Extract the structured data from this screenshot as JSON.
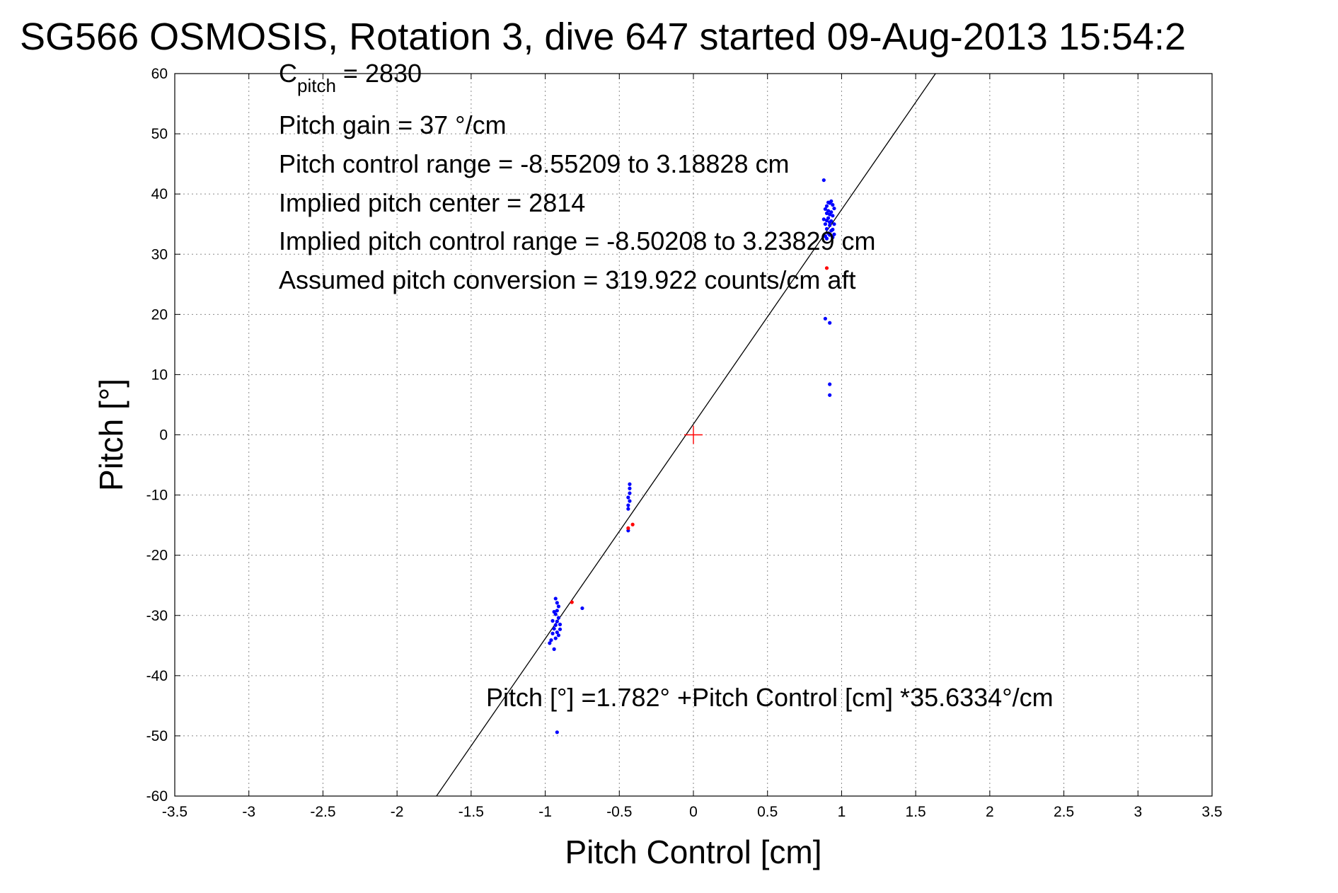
{
  "chart_data": {
    "type": "scatter",
    "title": "SG566 OSMOSIS, Rotation 3, dive 647 started 09-Aug-2013 15:54:2",
    "xlabel": "Pitch Control [cm]",
    "ylabel": "Pitch [°]",
    "xlim": [
      -3.5,
      3.5
    ],
    "ylim": [
      -60,
      60
    ],
    "xticks": [
      -3.5,
      -3,
      -2.5,
      -2,
      -1.5,
      -1,
      -0.5,
      0,
      0.5,
      1,
      1.5,
      2,
      2.5,
      3,
      3.5
    ],
    "yticks": [
      -60,
      -50,
      -40,
      -30,
      -20,
      -10,
      0,
      10,
      20,
      30,
      40,
      50,
      60
    ],
    "xtick_labels": [
      "-3.5",
      "-3",
      "-2.5",
      "-2",
      "-1.5",
      "-1",
      "-0.5",
      "0",
      "0.5",
      "1",
      "1.5",
      "2",
      "2.5",
      "3",
      "3.5"
    ],
    "ytick_labels": [
      "-60",
      "-50",
      "-40",
      "-30",
      "-20",
      "-10",
      "0",
      "10",
      "20",
      "30",
      "40",
      "50",
      "60"
    ],
    "grid": true,
    "fit_line": {
      "intercept": 1.782,
      "slope": 35.6334,
      "color": "#000000"
    },
    "center_marker": {
      "x": 0,
      "y": 0,
      "color": "#ff0000"
    },
    "annotations": {
      "cpitch_main": "C",
      "cpitch_sub": "pitch",
      "cpitch_value": " = 2830",
      "lines": [
        "Pitch gain = 37 °/cm",
        "Pitch control range = -8.55209 to 3.18828 cm",
        "Implied pitch center = 2814",
        "Implied pitch control range = -8.50208 to 3.23829 cm",
        "Assumed pitch conversion = 319.922 counts/cm aft"
      ],
      "equation": "Pitch [°] =1.782° +Pitch Control [cm] *35.6334°/cm"
    },
    "series": [
      {
        "color": "#0000ff",
        "points": [
          [
            0.88,
            42.3
          ],
          [
            0.89,
            37.5
          ],
          [
            0.9,
            36.8
          ],
          [
            0.91,
            36.0
          ],
          [
            0.92,
            38.5
          ],
          [
            0.93,
            38.8
          ],
          [
            0.94,
            38.2
          ],
          [
            0.95,
            37.6
          ],
          [
            0.88,
            35.8
          ],
          [
            0.89,
            35.0
          ],
          [
            0.9,
            34.2
          ],
          [
            0.91,
            33.5
          ],
          [
            0.92,
            34.8
          ],
          [
            0.93,
            35.5
          ],
          [
            0.94,
            36.4
          ],
          [
            0.95,
            35.0
          ],
          [
            0.89,
            33.0
          ],
          [
            0.9,
            32.6
          ],
          [
            0.91,
            37.2
          ],
          [
            0.92,
            36.6
          ],
          [
            0.93,
            33.9
          ],
          [
            0.94,
            34.1
          ],
          [
            0.95,
            33.3
          ],
          [
            0.9,
            38.0
          ],
          [
            0.91,
            38.6
          ],
          [
            0.92,
            35.3
          ],
          [
            0.93,
            37.0
          ],
          [
            0.94,
            32.8
          ],
          [
            0.9,
            35.6
          ],
          [
            0.92,
            33.2
          ],
          [
            0.89,
            19.3
          ],
          [
            0.92,
            18.6
          ],
          [
            0.92,
            8.4
          ],
          [
            0.92,
            6.6
          ],
          [
            -0.43,
            -8.2
          ],
          [
            -0.43,
            -8.9
          ],
          [
            -0.43,
            -9.7
          ],
          [
            -0.44,
            -10.4
          ],
          [
            -0.43,
            -11.0
          ],
          [
            -0.44,
            -11.7
          ],
          [
            -0.44,
            -12.3
          ],
          [
            -0.44,
            -15.9
          ],
          [
            -0.93,
            -27.2
          ],
          [
            -0.92,
            -27.9
          ],
          [
            -0.91,
            -28.5
          ],
          [
            -0.92,
            -29.2
          ],
          [
            -0.93,
            -29.8
          ],
          [
            -0.91,
            -30.4
          ],
          [
            -0.92,
            -31.0
          ],
          [
            -0.93,
            -31.6
          ],
          [
            -0.94,
            -32.2
          ],
          [
            -0.92,
            -32.8
          ],
          [
            -0.91,
            -33.3
          ],
          [
            -0.93,
            -33.8
          ],
          [
            -0.95,
            -33.0
          ],
          [
            -0.96,
            -34.1
          ],
          [
            -0.97,
            -34.6
          ],
          [
            -0.95,
            -30.9
          ],
          [
            -0.94,
            -29.4
          ],
          [
            -0.9,
            -31.5
          ],
          [
            -0.9,
            -32.3
          ],
          [
            -0.94,
            -35.6
          ],
          [
            -0.75,
            -28.8
          ],
          [
            -0.92,
            -49.4
          ]
        ]
      },
      {
        "color": "#ff0000",
        "points": [
          [
            0.9,
            27.7
          ],
          [
            -0.82,
            -27.8
          ],
          [
            -0.41,
            -14.9
          ],
          [
            -0.44,
            -15.5
          ]
        ]
      }
    ]
  }
}
